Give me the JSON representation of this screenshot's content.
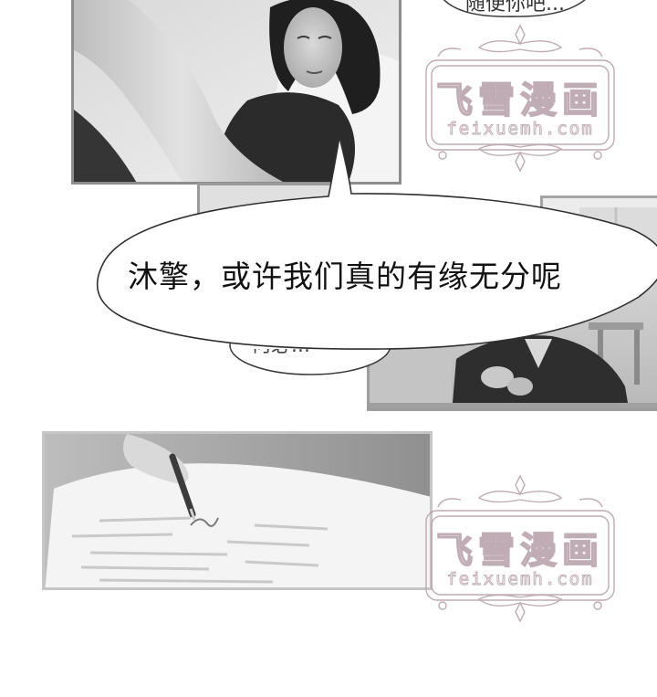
{
  "speech_bubbles": {
    "main_text": "沐擎，或许我们真的有缘无分呢",
    "top_partial_text": "随便你吧...",
    "middle_partial_text": "何必..."
  },
  "watermarks": [
    {
      "title": "飞雪漫画",
      "url": "feixuemh.com"
    },
    {
      "title": "飞雪漫画",
      "url": "feixuemh.com"
    }
  ],
  "colors": {
    "watermark": "#b59ea8",
    "panel_border": "#8d8d8d",
    "bubble_outline": "#3a3a3a",
    "background": "#ffffff"
  },
  "icons": {
    "ornament": "flourish-ornament-icon"
  }
}
